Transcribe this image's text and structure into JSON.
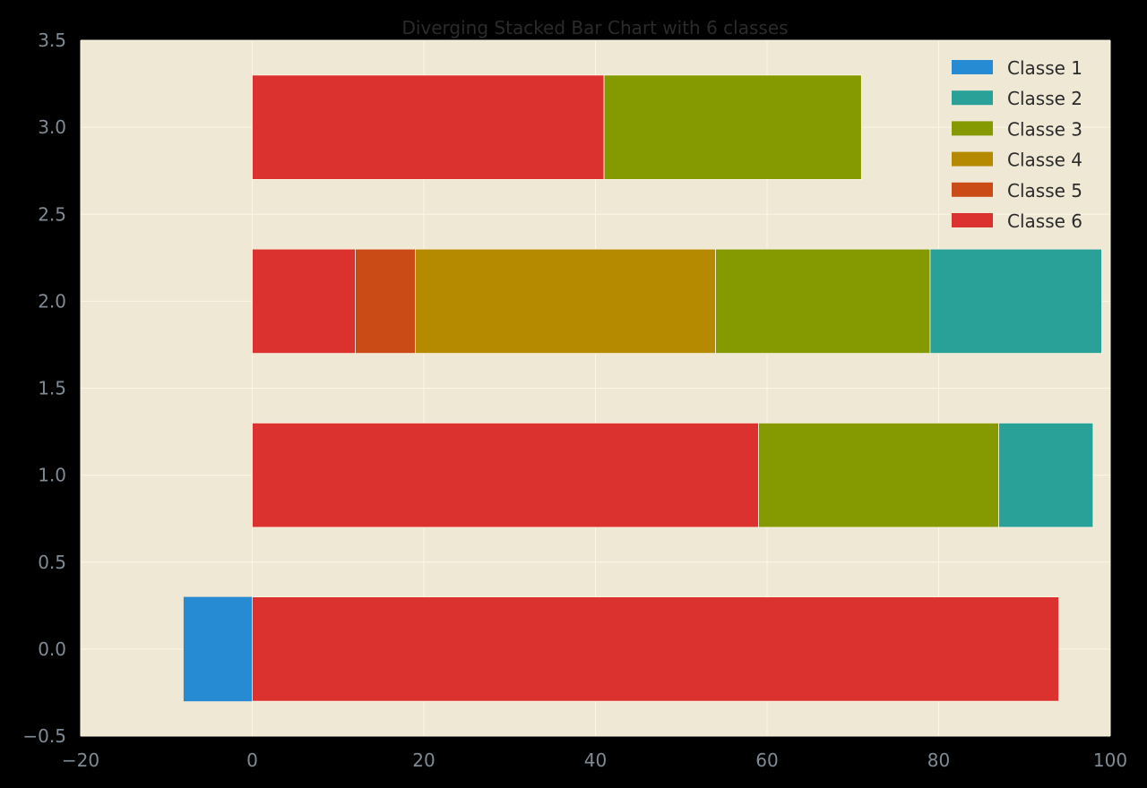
{
  "chart_data": {
    "type": "bar",
    "orientation": "horizontal",
    "stacked": true,
    "diverging": true,
    "title": "Diverging Stacked Bar Chart with 6 classes",
    "xlabel": "",
    "ylabel": "",
    "xlim": [
      -20,
      100
    ],
    "ylim": [
      -0.5,
      3.5
    ],
    "x_ticks": [
      -20,
      0,
      20,
      40,
      60,
      80,
      100
    ],
    "x_tick_labels": [
      "−20",
      "0",
      "20",
      "40",
      "60",
      "80",
      "100"
    ],
    "y_ticks": [
      -0.5,
      0.0,
      0.5,
      1.0,
      1.5,
      2.0,
      2.5,
      3.0,
      3.5
    ],
    "y_tick_labels": [
      "−0.5",
      "0.0",
      "0.5",
      "1.0",
      "1.5",
      "2.0",
      "2.5",
      "3.0",
      "3.5"
    ],
    "grid": true,
    "legend_position": "top-right",
    "categories": [
      0,
      1,
      2,
      3
    ],
    "bar_height": 0.6,
    "series": [
      {
        "name": "Classe 1",
        "color": "#268bd2",
        "values": [
          -8,
          0,
          0,
          0
        ]
      },
      {
        "name": "Classe 2",
        "color": "#2aa198",
        "values": [
          0,
          11,
          20,
          0
        ]
      },
      {
        "name": "Classe 3",
        "color": "#859900",
        "values": [
          0,
          28,
          25,
          30
        ]
      },
      {
        "name": "Classe 4",
        "color": "#b58900",
        "values": [
          0,
          0,
          35,
          0
        ]
      },
      {
        "name": "Classe 5",
        "color": "#cb4b16",
        "values": [
          0,
          0,
          7,
          0
        ]
      },
      {
        "name": "Classe 6",
        "color": "#dc322f",
        "values": [
          94,
          59,
          12,
          41
        ]
      }
    ],
    "stack_order_positive": [
      "Classe 6",
      "Classe 5",
      "Classe 4",
      "Classe 3",
      "Classe 2"
    ],
    "colors": {
      "figure_background": "#000000",
      "axes_background": "#eee8d5",
      "grid": "#fdf6e3",
      "tick_label": "#7f8a94",
      "text": "#2b2b2b"
    }
  }
}
